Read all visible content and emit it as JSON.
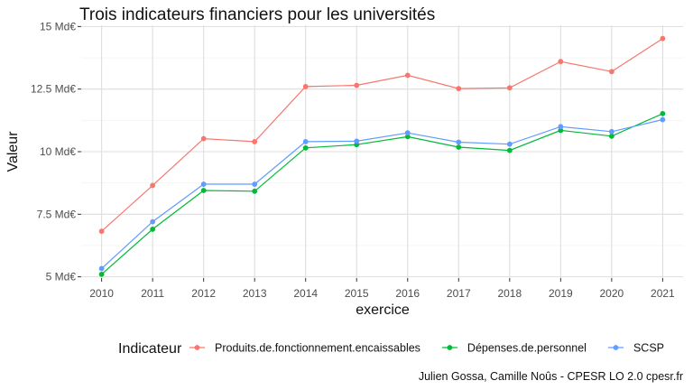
{
  "chart_data": {
    "type": "line",
    "title": "Trois indicateurs financiers pour les universités",
    "xlabel": "exercice",
    "ylabel": "Valeur",
    "x": [
      2010,
      2011,
      2012,
      2013,
      2014,
      2015,
      2016,
      2017,
      2018,
      2019,
      2020,
      2021
    ],
    "xlim": [
      2009.6,
      2021.4
    ],
    "ylim": [
      4.95,
      15.05
    ],
    "y_ticks": [
      5,
      7.5,
      10,
      12.5,
      15
    ],
    "y_tick_labels": [
      "5 Md€",
      "7.5 Md€",
      "10 Md€",
      "12.5 Md€",
      "15 Md€"
    ],
    "x_tick_labels": [
      "2010",
      "2011",
      "2012",
      "2013",
      "2014",
      "2015",
      "2016",
      "2017",
      "2018",
      "2019",
      "2020",
      "2021"
    ],
    "grid": true,
    "legend_title": "Indicateur",
    "legend_position": "bottom",
    "series": [
      {
        "name": "Produits.de.fonctionnement.encaissables",
        "color": "#F8766D",
        "values": [
          6.82,
          8.65,
          10.52,
          10.4,
          12.6,
          12.65,
          13.05,
          12.52,
          12.55,
          13.6,
          13.2,
          14.52
        ]
      },
      {
        "name": "Dépenses.de.personnel",
        "color": "#00BA38",
        "values": [
          5.1,
          6.9,
          8.45,
          8.42,
          10.15,
          10.28,
          10.6,
          10.18,
          10.05,
          10.85,
          10.62,
          11.52
        ]
      },
      {
        "name": "SCSP",
        "color": "#619CFF",
        "values": [
          5.33,
          7.2,
          8.7,
          8.7,
          10.4,
          10.42,
          10.75,
          10.38,
          10.3,
          11.0,
          10.8,
          11.28
        ]
      }
    ],
    "caption": "Julien Gossa, Camille Noûs - CPESR LO 2.0 cpesr.fr"
  }
}
